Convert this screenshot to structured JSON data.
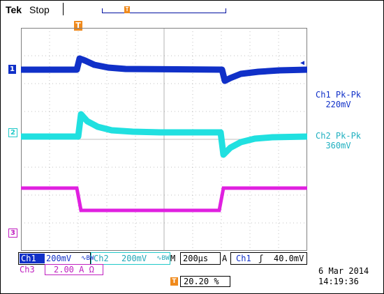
{
  "header": {
    "brand": "Tek",
    "status": "Stop",
    "trigger_marker": "T"
  },
  "channels": {
    "ch1": {
      "marker": "1",
      "color": "#1030c8"
    },
    "ch2": {
      "marker": "2",
      "color": "#20c8c8"
    },
    "ch3": {
      "marker": "3",
      "color": "#c020c0"
    }
  },
  "measurements": [
    {
      "label": "Ch1 Pk-Pk",
      "value": "220mV"
    },
    {
      "label": "Ch2 Pk-Pk",
      "value": "360mV"
    }
  ],
  "status_bar": {
    "ch1_label": "Ch1",
    "ch1_scale": "200mV",
    "ch1_coupling": "∿BW",
    "ch2_label": "Ch2",
    "ch2_scale": "200mV",
    "ch2_coupling": "∿BW",
    "time_label": "M",
    "time_scale": "200µs",
    "acq_label": "A",
    "trigger_source": "Ch1",
    "trigger_slope": "ʃ",
    "trigger_level": "40.0mV",
    "ch3_label": "Ch3",
    "ch3_scale": "2.00 A Ω",
    "trigger_position_marker": "T",
    "trigger_position": "20.20 %",
    "date": "6 Mar  2014",
    "time": "14:19:36"
  }
}
